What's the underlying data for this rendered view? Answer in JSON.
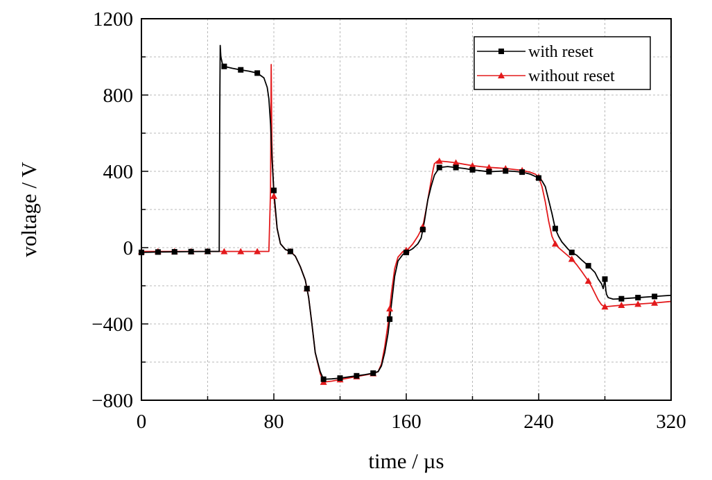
{
  "chart_data": {
    "type": "line",
    "xlabel": "time / µs",
    "ylabel": "voltage / V",
    "xlim": [
      0,
      320
    ],
    "ylim": [
      -800,
      1200
    ],
    "xticks": [
      0,
      80,
      160,
      240,
      320
    ],
    "yticks": [
      -800,
      -400,
      0,
      400,
      800,
      1200
    ],
    "xtick_labels": [
      "0",
      "80",
      "160",
      "240",
      "320"
    ],
    "ytick_labels": [
      "−800",
      "−400",
      "0",
      "400",
      "800",
      "1200"
    ],
    "grid": true,
    "legend_position": "top-right",
    "series": [
      {
        "name": "with reset",
        "color": "#000000",
        "marker": "square",
        "x": [
          0,
          10,
          20,
          30,
          40,
          47,
          47.3,
          47.6,
          48,
          49,
          50,
          55,
          60,
          65,
          70,
          74,
          76,
          77,
          78,
          79,
          80,
          82,
          84,
          87,
          90,
          93,
          96,
          99,
          101,
          103,
          105,
          108,
          110,
          115,
          120,
          125,
          130,
          135,
          140,
          143,
          145,
          147,
          149,
          151,
          153,
          155,
          158,
          161,
          164,
          167,
          169,
          171,
          173,
          175,
          177,
          180,
          185,
          190,
          195,
          200,
          205,
          210,
          215,
          220,
          225,
          230,
          235,
          240,
          242,
          244,
          246,
          248,
          250,
          252,
          254,
          256,
          258,
          260,
          263,
          266,
          270,
          274,
          276,
          278,
          279,
          280,
          280.6,
          281,
          282,
          285,
          290,
          300,
          310,
          320
        ],
        "y": [
          -25,
          -23,
          -22,
          -21,
          -20,
          -20,
          680,
          1060,
          1000,
          960,
          950,
          940,
          932,
          925,
          915,
          890,
          840,
          780,
          650,
          450,
          300,
          100,
          20,
          -10,
          -20,
          -45,
          -100,
          -170,
          -260,
          -400,
          -550,
          -650,
          -690,
          -688,
          -684,
          -678,
          -672,
          -666,
          -658,
          -650,
          -620,
          -550,
          -450,
          -300,
          -150,
          -70,
          -35,
          -20,
          -5,
          20,
          50,
          140,
          250,
          320,
          380,
          420,
          425,
          420,
          415,
          408,
          403,
          398,
          400,
          402,
          400,
          396,
          385,
          365,
          350,
          320,
          250,
          180,
          100,
          60,
          30,
          10,
          -10,
          -25,
          -40,
          -65,
          -95,
          -130,
          -165,
          -190,
          -215,
          -165,
          -225,
          -245,
          -262,
          -270,
          -268,
          -262,
          -256,
          -250
        ],
        "marker_x": [
          0,
          10,
          20,
          30,
          40,
          50,
          60,
          70,
          80,
          90,
          100,
          110,
          120,
          130,
          140,
          150,
          160,
          170,
          180,
          190,
          200,
          210,
          220,
          230,
          240,
          250,
          260,
          270,
          280,
          290,
          300,
          310
        ]
      },
      {
        "name": "without reset",
        "color": "#e31a1c",
        "marker": "triangle",
        "x": [
          0,
          10,
          20,
          30,
          40,
          50,
          60,
          70,
          75,
          76,
          77,
          78,
          78.4,
          78.8,
          79,
          80,
          82,
          84,
          87,
          90,
          93,
          96,
          99,
          101,
          103,
          105,
          108,
          110,
          115,
          120,
          125,
          130,
          135,
          140,
          143,
          145,
          147,
          149,
          151,
          153,
          155,
          158,
          161,
          164,
          167,
          170,
          172,
          174,
          176,
          177,
          179,
          185,
          190,
          195,
          200,
          205,
          210,
          215,
          220,
          225,
          230,
          235,
          238,
          240,
          242,
          244,
          246,
          248,
          250,
          252,
          254,
          256,
          258,
          260,
          263,
          266,
          268,
          270,
          272,
          274,
          276,
          278,
          280,
          285,
          290,
          300,
          310,
          320
        ],
        "y": [
          -20,
          -20,
          -20,
          -20,
          -20,
          -20,
          -20,
          -20,
          -20,
          -20,
          -20,
          300,
          960,
          560,
          480,
          270,
          100,
          20,
          -10,
          -20,
          -45,
          -100,
          -170,
          -260,
          -400,
          -550,
          -660,
          -705,
          -700,
          -692,
          -684,
          -676,
          -668,
          -660,
          -650,
          -610,
          -520,
          -400,
          -240,
          -110,
          -50,
          -20,
          -10,
          20,
          60,
          110,
          200,
          300,
          400,
          440,
          455,
          450,
          445,
          437,
          430,
          425,
          421,
          418,
          415,
          410,
          405,
          395,
          385,
          370,
          320,
          240,
          140,
          60,
          20,
          0,
          -15,
          -30,
          -45,
          -60,
          -90,
          -125,
          -150,
          -175,
          -205,
          -240,
          -275,
          -300,
          -310,
          -306,
          -302,
          -296,
          -290,
          -282
        ],
        "marker_x": [
          0,
          10,
          20,
          30,
          40,
          50,
          60,
          70,
          80,
          90,
          100,
          110,
          120,
          130,
          140,
          150,
          160,
          170,
          180,
          190,
          200,
          210,
          220,
          230,
          240,
          250,
          260,
          270,
          280,
          290,
          300,
          310
        ]
      }
    ]
  }
}
